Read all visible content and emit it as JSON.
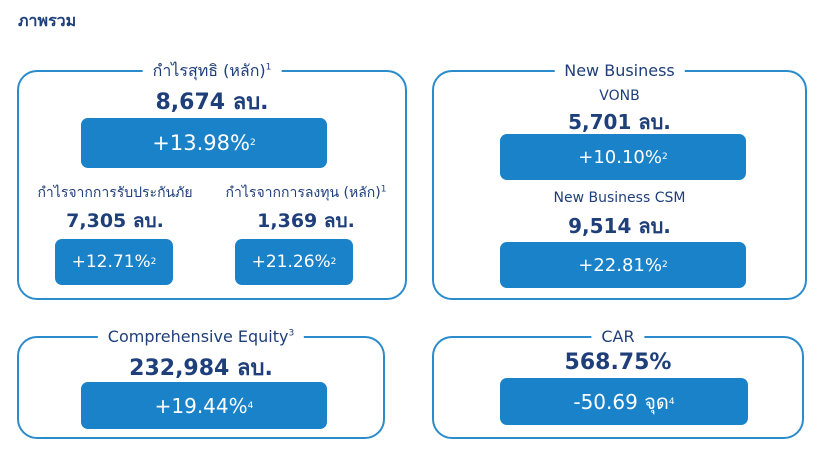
{
  "heading": "ภาพรวม",
  "net_profit": {
    "title": "กำไรสุทธิ (หลัก)",
    "title_note": "1",
    "value": "8,674 ลบ.",
    "change": "+13.98%",
    "change_note": "2",
    "insurance": {
      "label": "กำไรจากการรับประกันภัย",
      "value": "7,305 ลบ.",
      "change": "+12.71%",
      "change_note": "2"
    },
    "investment": {
      "label": "กำไรจากการลงทุน (หลัก)",
      "label_note": "1",
      "value": "1,369 ลบ.",
      "change": "+21.26%",
      "change_note": "2"
    }
  },
  "new_business": {
    "title": "New Business",
    "vonb": {
      "label": "VONB",
      "value": "5,701 ลบ.",
      "change": "+10.10%",
      "change_note": "2"
    },
    "csm": {
      "label": "New Business CSM",
      "value": "9,514 ลบ.",
      "change": "+22.81%",
      "change_note": "2"
    }
  },
  "equity": {
    "title": "Comprehensive Equity",
    "title_note": "3",
    "value": "232,984 ลบ.",
    "change": "+19.44%",
    "change_note": "4"
  },
  "car": {
    "title": "CAR",
    "value": "568.75%",
    "change": "-50.69 จุด",
    "change_note": "4"
  },
  "colors": {
    "accent": "#1a82c8",
    "border": "#2b8ccc",
    "text": "#1f3f7a"
  }
}
